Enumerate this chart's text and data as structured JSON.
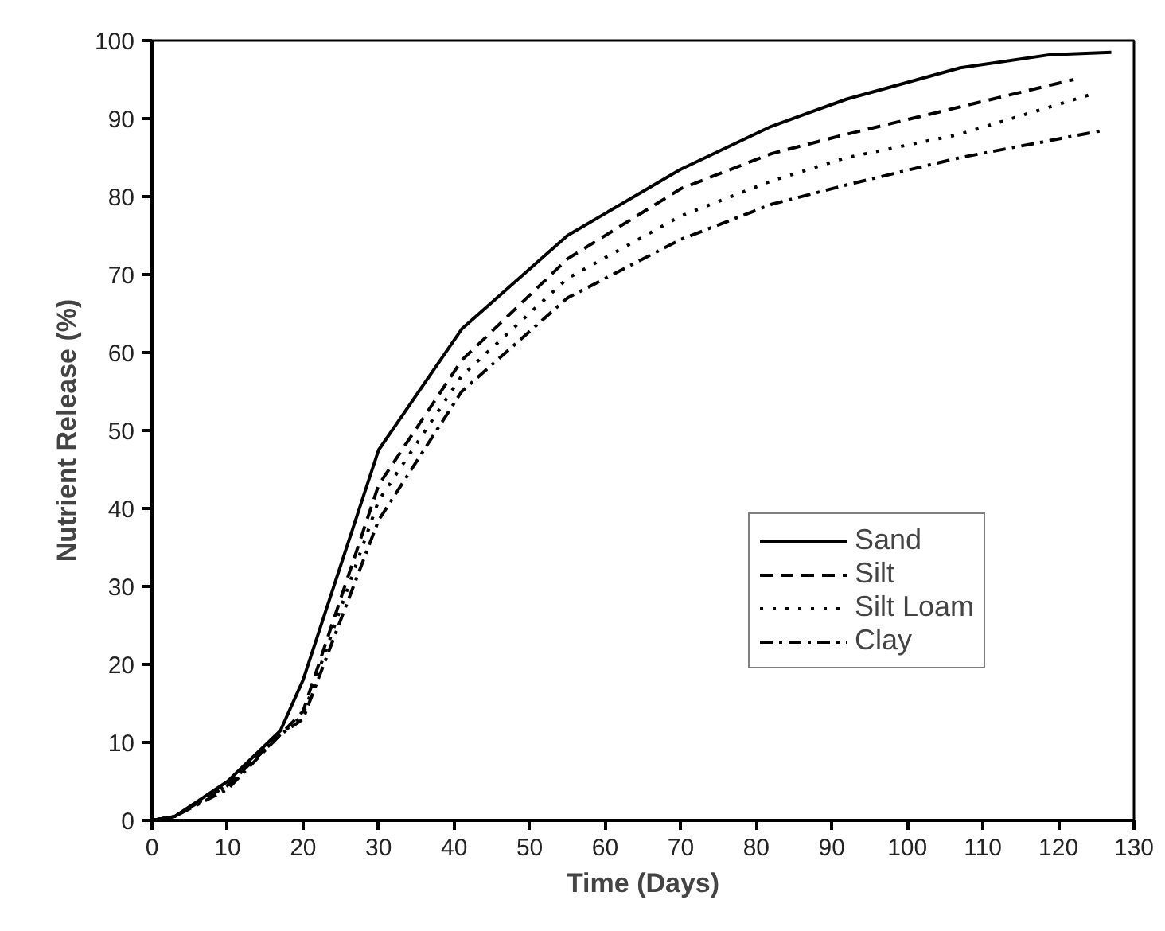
{
  "chart_data": {
    "type": "line",
    "xlabel": "Time (Days)",
    "ylabel": "Nutrient Release (%)",
    "xlim": [
      0,
      130
    ],
    "ylim": [
      0,
      100
    ],
    "xticks": [
      0,
      10,
      20,
      30,
      40,
      50,
      60,
      70,
      80,
      90,
      100,
      110,
      120,
      130
    ],
    "yticks": [
      0,
      10,
      20,
      30,
      40,
      50,
      60,
      70,
      80,
      90,
      100
    ],
    "grid": false,
    "legend": "right",
    "marker": "none",
    "series": [
      {
        "name": "Sand",
        "color": "#000000",
        "line_style": "solid",
        "x": [
          0,
          3,
          10,
          17,
          20,
          30,
          41,
          55,
          70,
          82,
          92,
          107,
          119,
          127
        ],
        "values": [
          0,
          0.5,
          5,
          11.5,
          18,
          47.5,
          63,
          75,
          83.5,
          89,
          92.5,
          96.5,
          98.2,
          98.5
        ]
      },
      {
        "name": "Silt",
        "color": "#000000",
        "line_style": "dashed",
        "x": [
          0,
          3,
          10,
          17,
          20,
          30,
          41,
          55,
          70,
          82,
          92,
          107,
          122
        ],
        "values": [
          0,
          0.5,
          4.5,
          11,
          14,
          43,
          59,
          72,
          81,
          85.5,
          88,
          91.5,
          95
        ]
      },
      {
        "name": "Silt Loam",
        "color": "#000000",
        "line_style": "dotted",
        "x": [
          0,
          3,
          10,
          17,
          20,
          30,
          41,
          55,
          70,
          82,
          92,
          107,
          124
        ],
        "values": [
          0,
          0.5,
          4.5,
          11,
          13.5,
          41,
          57,
          69.5,
          77.5,
          82,
          85,
          88,
          93
        ]
      },
      {
        "name": "Clay",
        "color": "#000000",
        "line_style": "dashdot",
        "x": [
          0,
          3,
          10,
          17,
          20,
          30,
          41,
          55,
          70,
          82,
          92,
          107,
          126
        ],
        "values": [
          0,
          0.5,
          4,
          11,
          13,
          38.5,
          55,
          67,
          74.5,
          79,
          81.5,
          85,
          88.5
        ]
      }
    ]
  }
}
